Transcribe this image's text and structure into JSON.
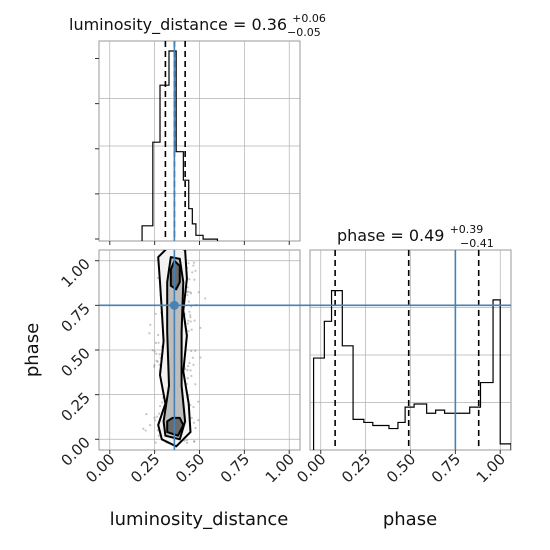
{
  "chart_data": {
    "type": "corner",
    "parameters": [
      "luminosity_distance",
      "phase"
    ],
    "truth": {
      "luminosity_distance": 0.36,
      "phase": 0.75
    },
    "colors": {
      "truth": "#4682b4",
      "hist": "#000000",
      "grid": "#b0b0b0",
      "quantile": "#000000",
      "scatter": "#7f7f7f"
    },
    "ticks": [
      "0.00",
      "0.25",
      "0.50",
      "0.75",
      "1.00"
    ],
    "ranges": {
      "luminosity_distance": [
        -0.06,
        1.06
      ],
      "phase": [
        -0.06,
        1.06
      ]
    },
    "grid": true,
    "panels": {
      "luminosity_distance_hist": {
        "title_main": "luminosity_distance = 0.36",
        "title_sup": "+0.06",
        "title_sub": "−0.05",
        "median": 0.36,
        "quantiles": [
          0.31,
          0.36,
          0.42
        ],
        "bin_edges": [
          0.18,
          0.24,
          0.28,
          0.33,
          0.37,
          0.41,
          0.44,
          0.46,
          0.48,
          0.52,
          0.6
        ],
        "counts": [
          0.08,
          0.52,
          0.82,
          1.0,
          0.47,
          0.32,
          0.17,
          0.09,
          0.03,
          0.01
        ]
      },
      "phase_hist": {
        "title_main": "phase = 0.49",
        "title_sup": "+0.39",
        "title_sub": "−0.41",
        "median": 0.49,
        "quantiles": [
          0.08,
          0.49,
          0.88
        ],
        "bin_edges": [
          -0.04,
          0.02,
          0.06,
          0.12,
          0.18,
          0.24,
          0.29,
          0.38,
          0.43,
          0.47,
          0.52,
          0.59,
          0.64,
          0.69,
          0.75,
          0.83,
          0.89,
          0.96,
          1.0,
          1.06
        ],
        "counts": [
          0.3,
          0.42,
          0.52,
          0.34,
          0.1,
          0.09,
          0.08,
          0.07,
          0.09,
          0.14,
          0.15,
          0.12,
          0.13,
          0.12,
          0.12,
          0.14,
          0.22,
          0.49,
          0.02
        ]
      },
      "joint": {
        "xlabel": "luminosity_distance",
        "ylabel": "phase",
        "mean_point": [
          0.36,
          0.75
        ],
        "levels": [
          {
            "fill": "#f2f2f2",
            "points": [
              [
                0.29,
                0.0
              ],
              [
                0.27,
                0.08
              ],
              [
                0.31,
                0.2
              ],
              [
                0.28,
                0.36
              ],
              [
                0.3,
                0.55
              ],
              [
                0.29,
                0.72
              ],
              [
                0.28,
                0.88
              ],
              [
                0.27,
                1.02
              ],
              [
                0.34,
                1.09
              ],
              [
                0.42,
                1.06
              ],
              [
                0.43,
                0.9
              ],
              [
                0.41,
                0.72
              ],
              [
                0.43,
                0.58
              ],
              [
                0.41,
                0.38
              ],
              [
                0.44,
                0.2
              ],
              [
                0.45,
                0.04
              ],
              [
                0.37,
                -0.04
              ]
            ]
          },
          {
            "fill": "#bdbdbd",
            "points": [
              [
                0.31,
                0.02
              ],
              [
                0.3,
                0.1
              ],
              [
                0.33,
                0.3
              ],
              [
                0.32,
                0.6
              ],
              [
                0.32,
                0.88
              ],
              [
                0.34,
                1.02
              ],
              [
                0.39,
                1.01
              ],
              [
                0.41,
                0.88
              ],
              [
                0.4,
                0.6
              ],
              [
                0.4,
                0.3
              ],
              [
                0.42,
                0.1
              ],
              [
                0.39,
                0.0
              ]
            ]
          },
          {
            "fill": "#6b6b6b",
            "points": [
              [
                0.32,
                0.04
              ],
              [
                0.32,
                0.1
              ],
              [
                0.35,
                0.12
              ],
              [
                0.39,
                0.12
              ],
              [
                0.41,
                0.08
              ],
              [
                0.38,
                0.02
              ]
            ]
          },
          {
            "fill": "#6b6b6b",
            "points": [
              [
                0.34,
                0.86
              ],
              [
                0.34,
                0.95
              ],
              [
                0.36,
                1.0
              ],
              [
                0.39,
                0.97
              ],
              [
                0.39,
                0.88
              ],
              [
                0.37,
                0.84
              ]
            ]
          }
        ]
      }
    }
  }
}
